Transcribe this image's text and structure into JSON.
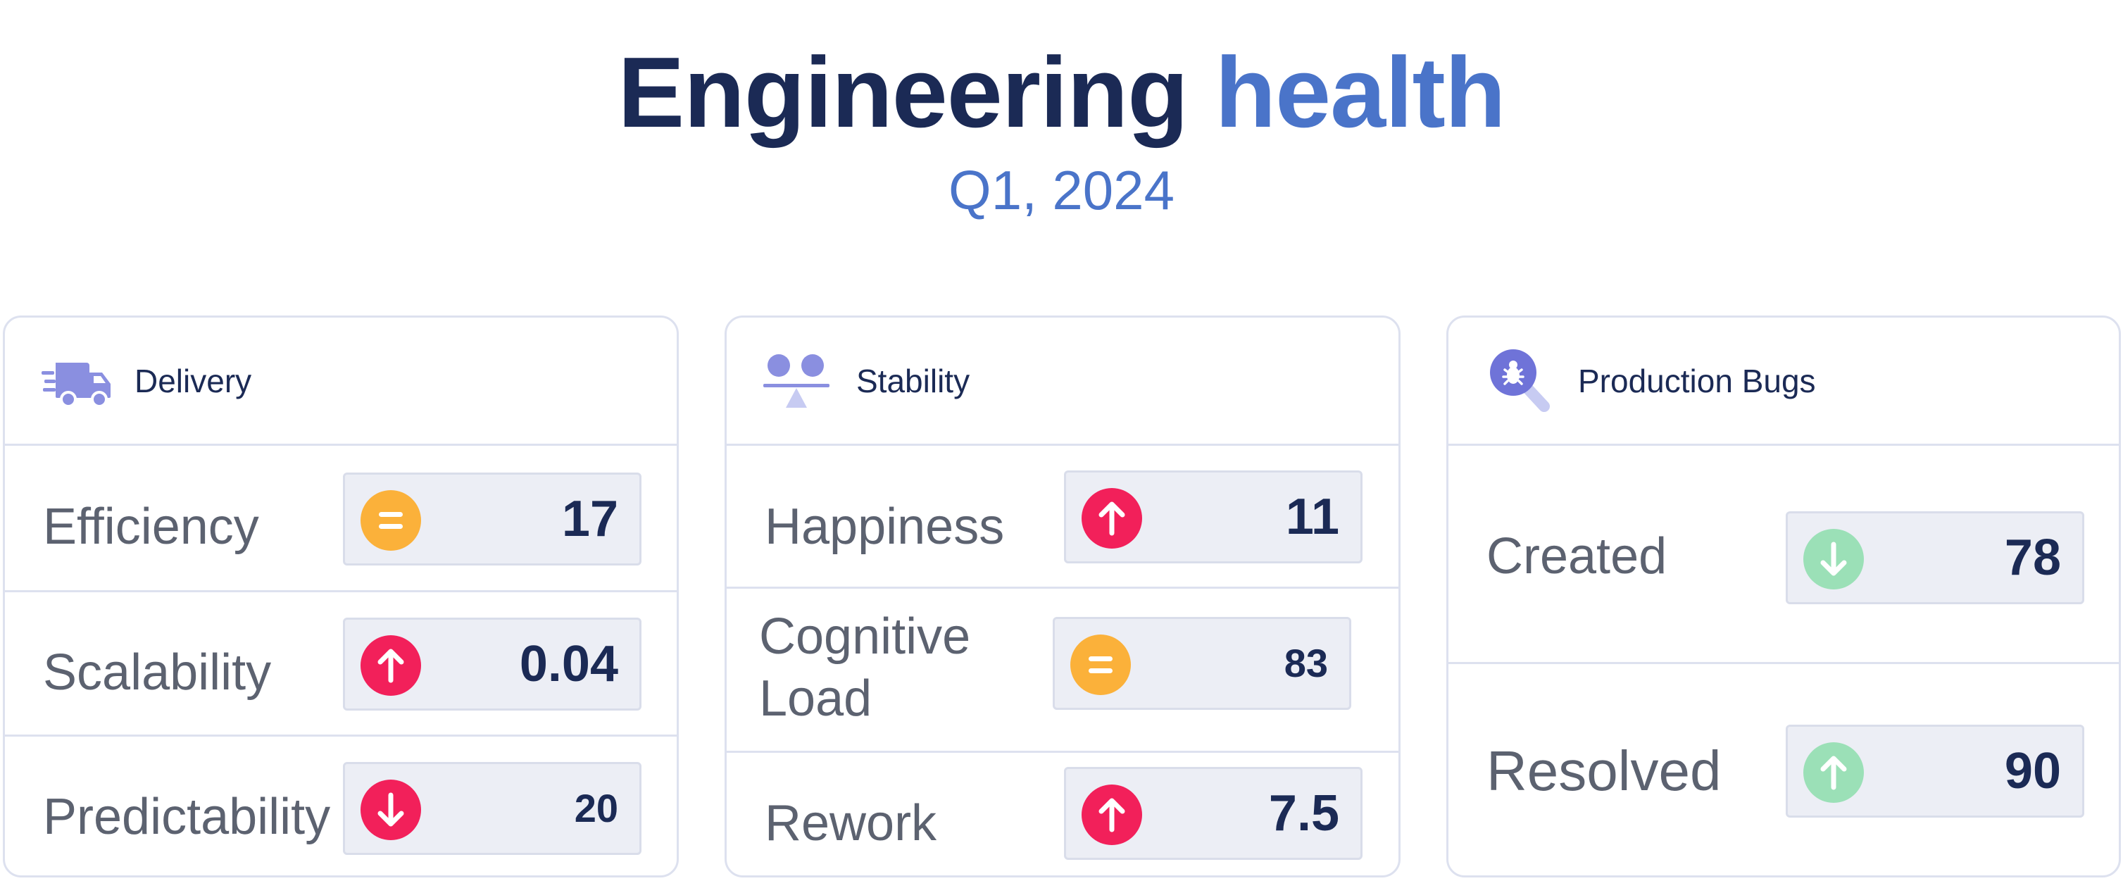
{
  "header": {
    "title_part1": "Engineering",
    "title_part2": "health",
    "subtitle": "Q1, 2024"
  },
  "colors": {
    "navy": "#1b2a55",
    "accent_blue": "#4a74c9",
    "red": "#f2205a",
    "orange": "#fbb13a",
    "green": "#9be0b7",
    "icon_purple": "#8a8fe0"
  },
  "cards": [
    {
      "title": "Delivery",
      "icon": "delivery-truck-icon",
      "metrics": [
        {
          "label": "Efficiency",
          "value": "17",
          "trend": "equal"
        },
        {
          "label": "Scalability",
          "value": "0.04",
          "trend": "up"
        },
        {
          "label": "Predictability",
          "value": "20",
          "trend": "down"
        }
      ]
    },
    {
      "title": "Stability",
      "icon": "balance-scale-icon",
      "metrics": [
        {
          "label": "Happiness",
          "value": "11",
          "trend": "up"
        },
        {
          "label_line1": "Cognitive",
          "label_line2": "Load",
          "value": "83",
          "trend": "equal"
        },
        {
          "label": "Rework",
          "value": "7.5",
          "trend": "up"
        }
      ]
    },
    {
      "title": "Production Bugs",
      "icon": "bug-search-icon",
      "metrics": [
        {
          "label": "Created",
          "value": "78",
          "trend": "down"
        },
        {
          "label": "Resolved",
          "value": "90",
          "trend": "up"
        }
      ]
    }
  ]
}
